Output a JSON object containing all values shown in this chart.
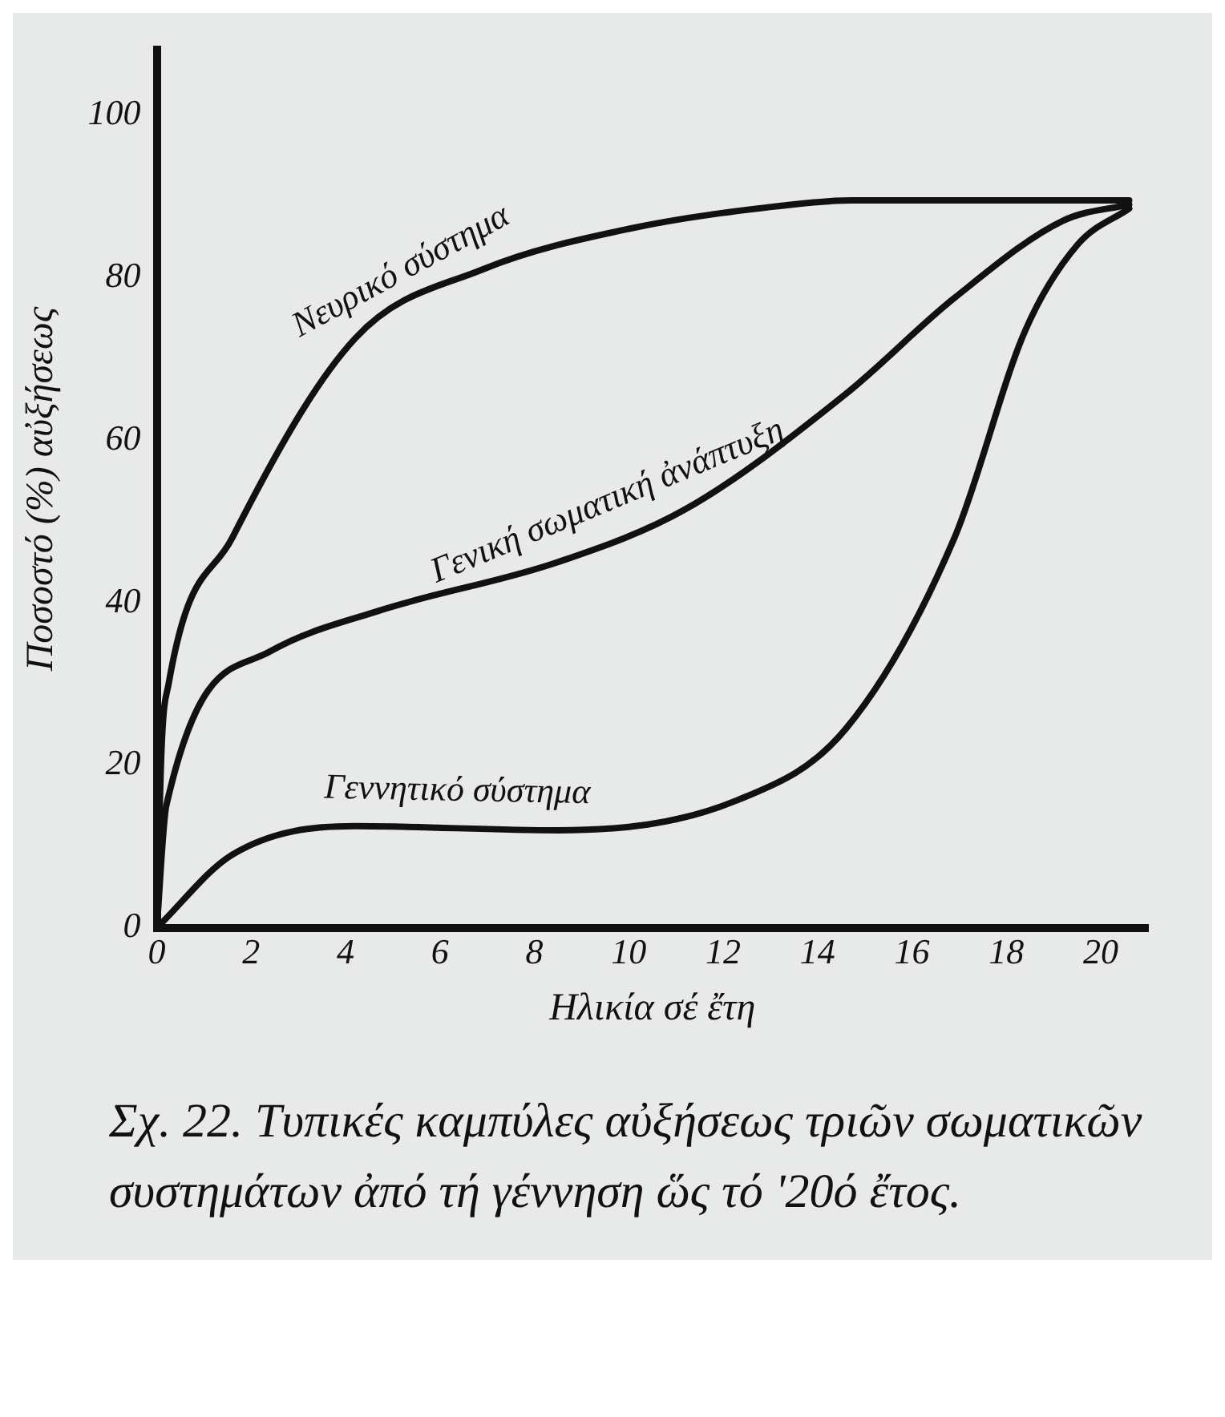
{
  "chart_data": {
    "type": "line",
    "xlabel": "Ηλικία σέ ἔτη",
    "ylabel": "Ποσοστό (%) αὐξήσεως",
    "xlim": [
      0,
      21
    ],
    "xticks": [
      0,
      2,
      4,
      6,
      8,
      10,
      12,
      14,
      16,
      18,
      20
    ],
    "ylim": [
      0,
      108
    ],
    "yticks": [
      0,
      20,
      40,
      60,
      80,
      100
    ],
    "grid": false,
    "legend": false,
    "marker": "none",
    "line_style": "solid",
    "series": [
      {
        "name": "Νευρικό σύστημα",
        "color": "#111111",
        "x": [
          0,
          0.1,
          0.25,
          1.6,
          4.2,
          6.9,
          10,
          13.5,
          14.7,
          20.6
        ],
        "values": [
          0,
          22,
          30,
          48,
          72.5,
          81,
          86,
          89,
          89.5,
          89.5
        ]
      },
      {
        "name": "Γενική σωματική ἀνάπτυξη",
        "color": "#111111",
        "x": [
          0,
          0.2,
          2.4,
          4.7,
          8.5,
          11.2,
          14.6,
          16.9,
          19.2,
          20.6
        ],
        "values": [
          0,
          15,
          34,
          39,
          45,
          51.5,
          65.7,
          77.5,
          87,
          89
        ]
      },
      {
        "name": "Γεννητικό σύστημα",
        "color": "#111111",
        "x": [
          0,
          1.6,
          4.2,
          8.5,
          12.3,
          14.6,
          16.9,
          18.4,
          19.5,
          20.6
        ],
        "values": [
          0,
          9,
          12.5,
          12,
          15.7,
          24.5,
          48,
          73.5,
          84,
          88.5
        ]
      }
    ],
    "annotations": [
      "Σχ. 22. Τυπικές καμπύλες αὐξήσεως τριῶν σωματικῶν συστημάτων ἀπό τή γέννηση ὥς τό '20ό ἔτος."
    ]
  }
}
